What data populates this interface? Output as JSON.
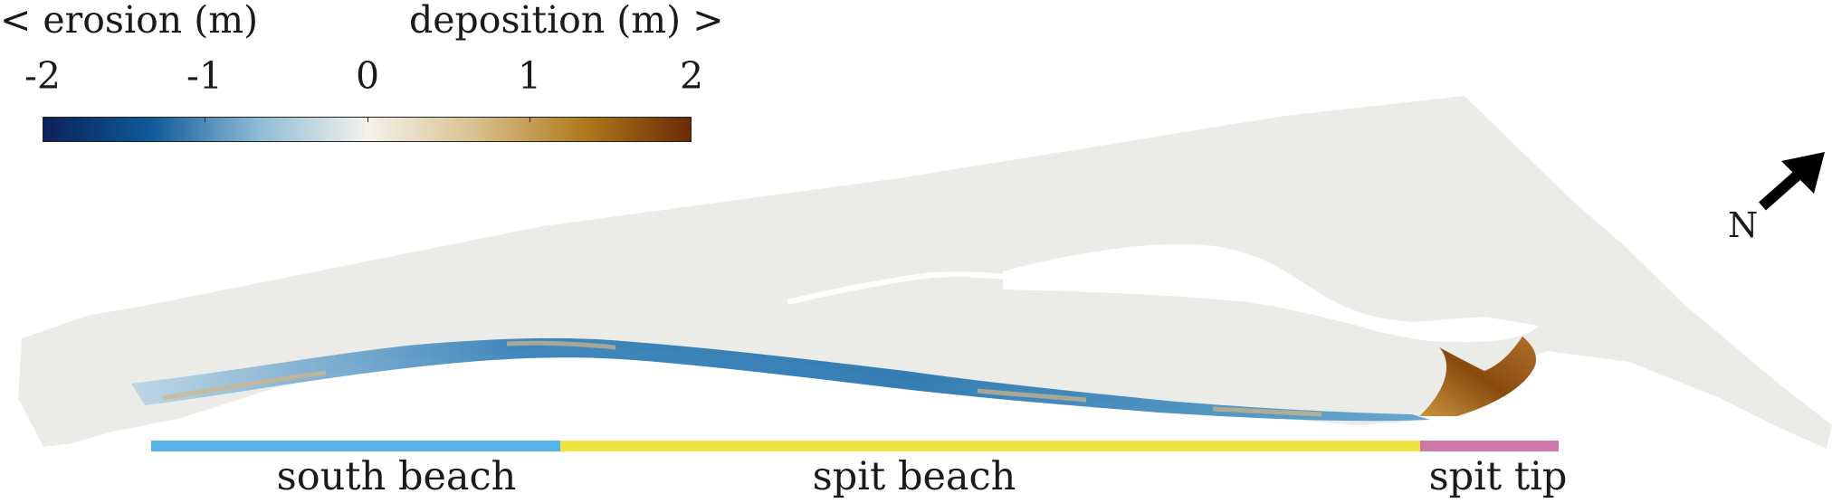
{
  "colorbar": {
    "erosion_label": "< erosion (m)",
    "deposition_label": "deposition (m) >",
    "ticks": [
      "-2",
      "-1",
      "0",
      "1",
      "2"
    ],
    "colors": [
      "#0b2157",
      "#0f5a9a",
      "#8fbcd6",
      "#f4f2ec",
      "#d9c08f",
      "#b07b1c",
      "#6b2a06"
    ]
  },
  "sections": [
    {
      "label": "south beach",
      "color": "#56b4e9"
    },
    {
      "label": "spit beach",
      "color": "#f0e442"
    },
    {
      "label": "spit tip",
      "color": "#cc79a7"
    }
  ],
  "compass": {
    "label": "N",
    "icon": "north-arrow-icon"
  },
  "map": {
    "land_color": "#ebece8",
    "erosion_color": "#1f6fab",
    "deposition_color": "#8a4a0e"
  }
}
